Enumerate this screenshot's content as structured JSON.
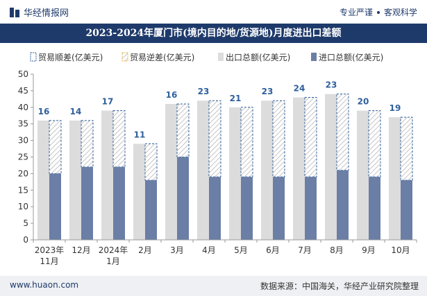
{
  "header": {
    "brand": "华经情报网",
    "slogan_left": "专业严谨",
    "slogan_right": "客观科学"
  },
  "chart_data": {
    "type": "bar",
    "title": "2023-2024年厦门市(境内目的地/货源地)月度进出口差额",
    "categories": [
      "2023年11月",
      "12月",
      "2024年1月",
      "2月",
      "3月",
      "4月",
      "5月",
      "6月",
      "7月",
      "8月",
      "9月",
      "10月"
    ],
    "category_lines": [
      [
        "2023年",
        "11月"
      ],
      [
        "12月"
      ],
      [
        "2024年",
        "1月"
      ],
      [
        "2月"
      ],
      [
        "3月"
      ],
      [
        "4月"
      ],
      [
        "5月"
      ],
      [
        "6月"
      ],
      [
        "7月"
      ],
      [
        "8月"
      ],
      [
        "9月"
      ],
      [
        "10月"
      ]
    ],
    "series": [
      {
        "name": "贸易顺差(亿美元)",
        "values": [
          16,
          14,
          17,
          11,
          16,
          23,
          21,
          23,
          24,
          23,
          20,
          19
        ]
      },
      {
        "name": "贸易逆差(亿美元)",
        "values": [
          0,
          0,
          0,
          0,
          0,
          0,
          0,
          0,
          0,
          0,
          0,
          0
        ]
      },
      {
        "name": "出口总额(亿美元)",
        "values": [
          36,
          36,
          39,
          29,
          41,
          42,
          40,
          42,
          43,
          44,
          39,
          37
        ]
      },
      {
        "name": "进口总额(亿美元)",
        "values": [
          20,
          22,
          22,
          18,
          25,
          19,
          19,
          19,
          19,
          21,
          19,
          18
        ]
      }
    ],
    "ylim": [
      0,
      50
    ],
    "yticks": [
      0,
      5,
      10,
      15,
      20,
      25,
      30,
      35,
      40,
      45,
      50
    ],
    "legend_position": "top",
    "colors": {
      "export": "#dcdcdc",
      "import": "#6b7ea6",
      "surplus_stroke": "#2f5f9e",
      "label": "#2f5f9e",
      "axis_text": "#333333"
    }
  },
  "footer": {
    "url": "www.huaon.com",
    "source": "数据来源：中国海关，华经产业研究院整理"
  }
}
